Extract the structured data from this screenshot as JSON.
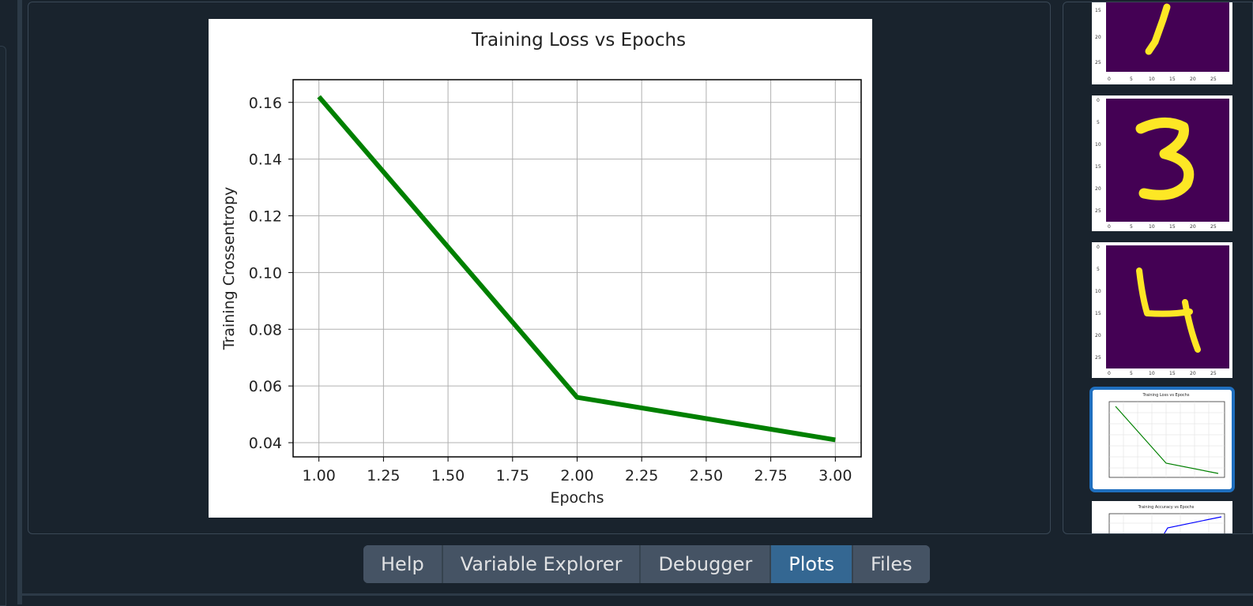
{
  "plots_pane": {
    "figure": {
      "chart_data": {
        "type": "line",
        "title": "Training Loss vs Epochs",
        "xlabel": "Epochs",
        "ylabel": "Training Crossentropy",
        "xlim": [
          0.9,
          3.1
        ],
        "ylim": [
          0.035,
          0.168
        ],
        "xticks": [
          1.0,
          1.25,
          1.5,
          1.75,
          2.0,
          2.25,
          2.5,
          2.75,
          3.0
        ],
        "xtick_labels": [
          "1.00",
          "1.25",
          "1.50",
          "1.75",
          "2.00",
          "2.25",
          "2.50",
          "2.75",
          "3.00"
        ],
        "yticks": [
          0.04,
          0.06,
          0.08,
          0.1,
          0.12,
          0.14,
          0.16
        ],
        "ytick_labels": [
          "0.04",
          "0.06",
          "0.08",
          "0.10",
          "0.12",
          "0.14",
          "0.16"
        ],
        "grid": true,
        "series": [
          {
            "color": "#008000",
            "x": [
              1,
              2,
              3
            ],
            "y": [
              0.162,
              0.056,
              0.041
            ]
          }
        ]
      }
    }
  },
  "thumbnails": {
    "items": [
      {
        "kind": "digit",
        "digit": "1"
      },
      {
        "kind": "digit",
        "digit": "3"
      },
      {
        "kind": "digit",
        "digit": "4"
      },
      {
        "kind": "chart",
        "title": "Training Loss vs Epochs",
        "selected": true
      },
      {
        "kind": "chart",
        "title": "Training Accuracy vs Epochs"
      }
    ],
    "colors": {
      "background": "#440154",
      "digit": "#fde725",
      "accent_loss": "#008000",
      "accent_acc": "#0000ff"
    }
  },
  "bottom_tabs": {
    "items": [
      {
        "label": "Help",
        "active": false
      },
      {
        "label": "Variable Explorer",
        "active": false
      },
      {
        "label": "Debugger",
        "active": false
      },
      {
        "label": "Plots",
        "active": true
      },
      {
        "label": "Files",
        "active": false
      }
    ]
  },
  "theme": {
    "accent": "#346792",
    "background": "#19232d",
    "tab_bg": "#455364"
  }
}
